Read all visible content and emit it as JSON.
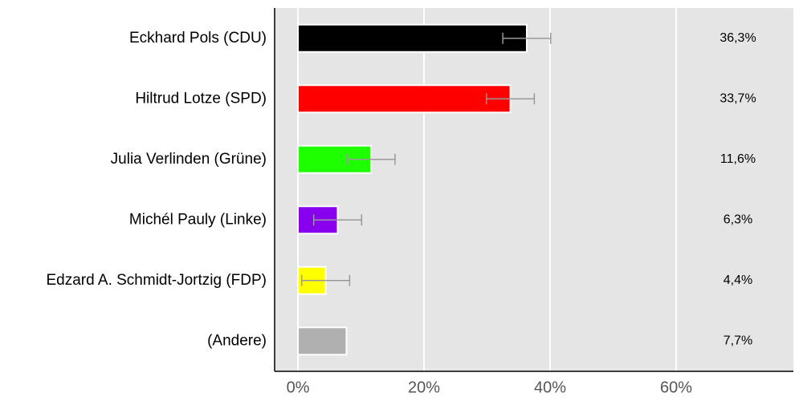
{
  "chart_data": {
    "type": "bar",
    "orientation": "horizontal",
    "categories": [
      "Eckhard Pols (CDU)",
      "Hiltrud Lotze (SPD)",
      "Julia Verlinden (Grüne)",
      "Michél Pauly (Linke)",
      "Edzard A. Schmidt-Jortzig (FDP)",
      "(Andere)"
    ],
    "values": [
      36.3,
      33.7,
      11.6,
      6.3,
      4.4,
      7.7
    ],
    "value_labels": [
      "36,3%",
      "33,7%",
      "11,6%",
      "6,3%",
      "4,4%",
      "7,7%"
    ],
    "errors": [
      3.8,
      3.8,
      3.8,
      3.8,
      3.8,
      null
    ],
    "colors": [
      "#000000",
      "#ff0000",
      "#1eff00",
      "#8800ee",
      "#ffff00",
      "#b0b0b0"
    ],
    "error_color": "#999999",
    "xlim": [
      -3.7,
      78.6
    ],
    "xticks": [
      {
        "value": 0,
        "label": "0%"
      },
      {
        "value": 20,
        "label": "20%"
      },
      {
        "value": 40,
        "label": "40%"
      },
      {
        "value": 60,
        "label": "60%"
      }
    ],
    "grid": true
  }
}
